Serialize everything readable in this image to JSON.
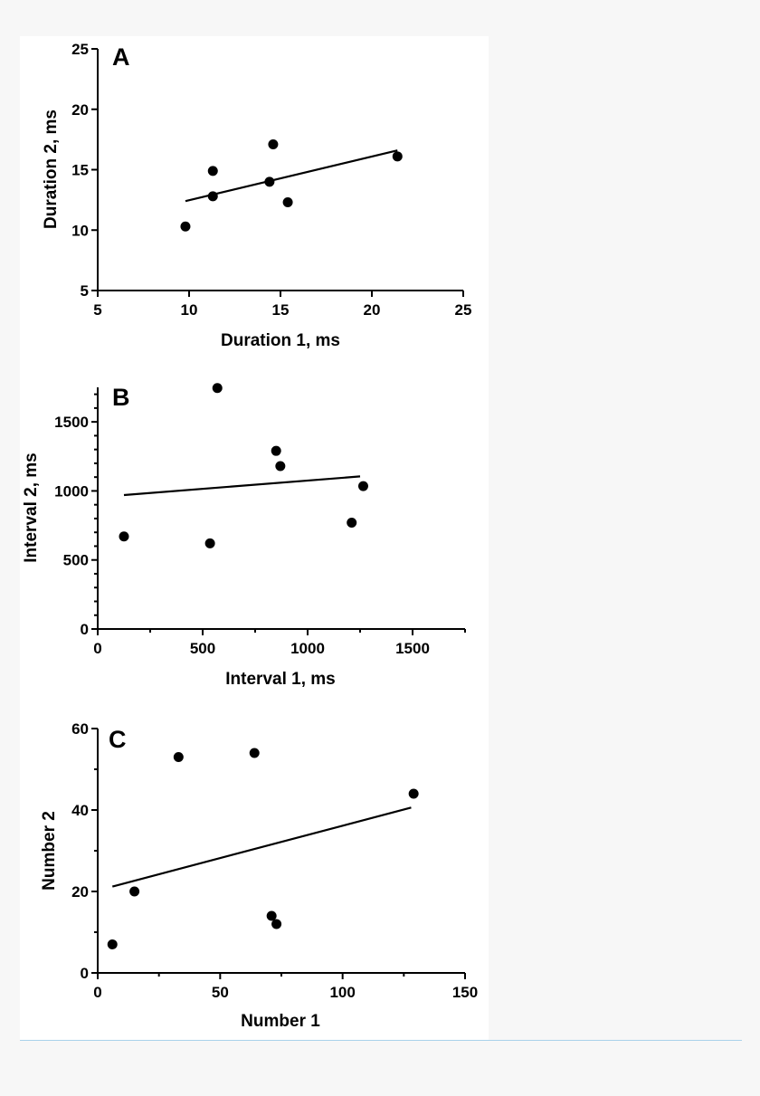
{
  "colors": {
    "page_background": "#f7f7f7",
    "panel_background": "#ffffff",
    "ink": "#000000",
    "bottom_rule": "#a9d2ea"
  },
  "chart_data": [
    {
      "id": "A",
      "type": "scatter",
      "panel_label": "A",
      "xlabel": "Duration 1, ms",
      "ylabel": "Duration 2, ms",
      "xlim": [
        5,
        25
      ],
      "ylim": [
        5,
        25
      ],
      "x_ticks": [
        5,
        10,
        15,
        20,
        25
      ],
      "y_ticks": [
        5,
        10,
        15,
        20,
        25
      ],
      "x_minor_ticks": [],
      "y_minor_ticks": [],
      "points": [
        {
          "x": 9.8,
          "y": 10.3
        },
        {
          "x": 11.3,
          "y": 14.9
        },
        {
          "x": 11.3,
          "y": 12.8
        },
        {
          "x": 14.4,
          "y": 14.0
        },
        {
          "x": 14.6,
          "y": 17.1
        },
        {
          "x": 15.4,
          "y": 12.3
        },
        {
          "x": 21.4,
          "y": 16.1
        }
      ],
      "fit_line": {
        "x": [
          9.8,
          21.4
        ],
        "y": [
          12.4,
          16.6
        ]
      },
      "grid": false
    },
    {
      "id": "B",
      "type": "scatter",
      "panel_label": "B",
      "xlabel": "Interval 1, ms",
      "ylabel": "Interval 2, ms",
      "xlim": [
        0,
        1750
      ],
      "ylim": [
        0,
        1750
      ],
      "x_ticks": [
        0,
        500,
        1000,
        1500
      ],
      "y_ticks": [
        0,
        500,
        1000,
        1500
      ],
      "x_minor_ticks": [
        250,
        750,
        1250,
        1750
      ],
      "y_minor_ticks": [
        100,
        200,
        300,
        400,
        600,
        700,
        800,
        900,
        1100,
        1200,
        1300,
        1400,
        1600,
        1700
      ],
      "points": [
        {
          "x": 125,
          "y": 670
        },
        {
          "x": 535,
          "y": 620
        },
        {
          "x": 570,
          "y": 1745
        },
        {
          "x": 850,
          "y": 1290
        },
        {
          "x": 870,
          "y": 1180
        },
        {
          "x": 1210,
          "y": 770
        },
        {
          "x": 1265,
          "y": 1035
        }
      ],
      "fit_line": {
        "x": [
          125,
          1250
        ],
        "y": [
          970,
          1105
        ]
      },
      "grid": false
    },
    {
      "id": "C",
      "type": "scatter",
      "panel_label": "C",
      "xlabel": "Number 1",
      "ylabel": "Number 2",
      "xlim": [
        0,
        150
      ],
      "ylim": [
        0,
        60
      ],
      "x_ticks": [
        0,
        50,
        100,
        150
      ],
      "y_ticks": [
        0,
        20,
        40,
        60
      ],
      "x_minor_ticks": [
        25,
        75,
        125
      ],
      "y_minor_ticks": [
        10,
        30,
        50
      ],
      "points": [
        {
          "x": 6,
          "y": 7
        },
        {
          "x": 15,
          "y": 20
        },
        {
          "x": 33,
          "y": 53
        },
        {
          "x": 64,
          "y": 54
        },
        {
          "x": 71,
          "y": 14
        },
        {
          "x": 73,
          "y": 12
        },
        {
          "x": 129,
          "y": 44
        }
      ],
      "fit_line": {
        "x": [
          6,
          128
        ],
        "y": [
          21.2,
          40.6
        ]
      },
      "grid": false
    }
  ]
}
